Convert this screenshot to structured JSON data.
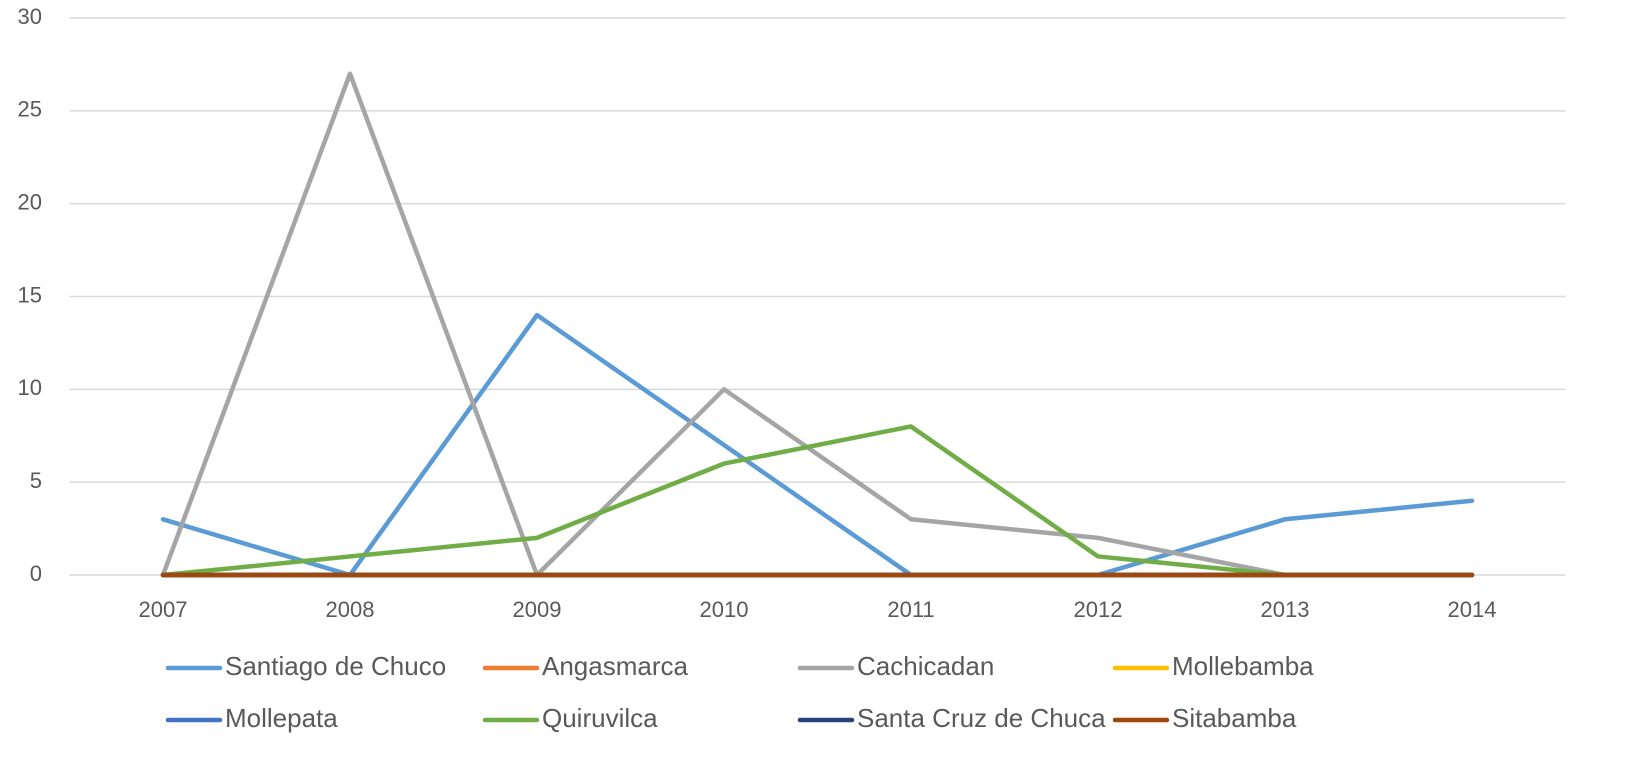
{
  "chart_data": {
    "type": "line",
    "categories": [
      "2007",
      "2008",
      "2009",
      "2010",
      "2011",
      "2012",
      "2013",
      "2014"
    ],
    "series": [
      {
        "name": "Santiago de Chuco",
        "color": "#5b9bd5",
        "values": [
          3,
          0,
          14,
          7,
          0,
          0,
          3,
          4
        ]
      },
      {
        "name": "Angasmarca",
        "color": "#ed7d31",
        "values": [
          0,
          0,
          0,
          0,
          0,
          0,
          0,
          0
        ]
      },
      {
        "name": "Cachicadan",
        "color": "#a5a5a5",
        "values": [
          0,
          27,
          0,
          10,
          3,
          2,
          0,
          0
        ]
      },
      {
        "name": "Mollebamba",
        "color": "#ffc000",
        "values": [
          0,
          0,
          0,
          0,
          0,
          0,
          0,
          0
        ]
      },
      {
        "name": "Mollepata",
        "color": "#4472c4",
        "values": [
          0,
          0,
          0,
          0,
          0,
          0,
          0,
          0
        ]
      },
      {
        "name": "Quiruvilca",
        "color": "#70ad47",
        "values": [
          0,
          1,
          2,
          6,
          8,
          1,
          0,
          0
        ]
      },
      {
        "name": "Santa Cruz de Chuca",
        "color": "#264478",
        "values": [
          0,
          0,
          0,
          0,
          0,
          0,
          0,
          0
        ]
      },
      {
        "name": "Sitabamba",
        "color": "#9e480e",
        "values": [
          0,
          0,
          0,
          0,
          0,
          0,
          0,
          0
        ]
      }
    ],
    "ylim": [
      0,
      30
    ],
    "yticks": [
      0,
      5,
      10,
      15,
      20,
      25,
      30
    ],
    "grid": true,
    "legend": "bottom"
  }
}
